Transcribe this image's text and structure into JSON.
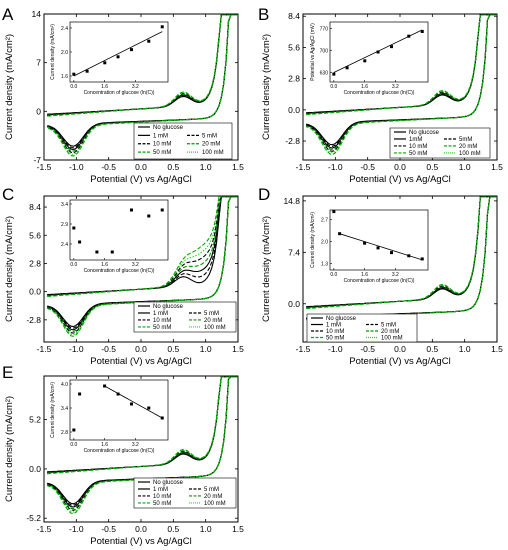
{
  "chart_data": [
    {
      "panel": "A",
      "type": "line",
      "xlabel": "Potential (V) vs Ag/AgCl",
      "ylabel": "Current density (mA/cm²)",
      "xticks": [
        "-1.5",
        "-1.0",
        "-0.5",
        "0.0",
        "0.5",
        "1.0",
        "1.5"
      ],
      "yticks": [
        "-7",
        "0",
        "7",
        "14"
      ],
      "xlim": [
        -1.5,
        1.5
      ],
      "ylim": [
        -7,
        14
      ],
      "legend": [
        {
          "name": "No glucose",
          "color": "#000000",
          "dash": "solid"
        },
        {
          "name": "5 mM",
          "color": "#000000",
          "dash": "dash"
        },
        {
          "name": "1 mM",
          "color": "#000000",
          "dash": "solid"
        },
        {
          "name": "20 mM",
          "color": "#009900",
          "dash": "dash"
        },
        {
          "name": "10 mM",
          "color": "#000000",
          "dash": "dash"
        },
        {
          "name": "100 mM",
          "color": "#33cc33",
          "dash": "dot"
        },
        {
          "name": "50 mM",
          "color": "#00aa00",
          "dash": "dash"
        }
      ],
      "inset": {
        "xlabel": "Concentration of glucose (ln(C))",
        "ylabel": "Current density (mA/cm²)",
        "xticks": [
          "0.0",
          "1.6",
          "3.2"
        ],
        "yticks": [
          "1.6",
          "2.0",
          "2.4"
        ],
        "xlim": [
          -0.2,
          4.9
        ],
        "ylim": [
          1.5,
          2.5
        ],
        "points": [
          [
            0.0,
            1.63
          ],
          [
            0.69,
            1.68
          ],
          [
            1.61,
            1.82
          ],
          [
            2.3,
            1.92
          ],
          [
            3.0,
            2.04
          ],
          [
            3.9,
            2.18
          ],
          [
            4.6,
            2.42
          ]
        ],
        "fit": [
          [
            0.0,
            1.6
          ],
          [
            4.6,
            2.34
          ]
        ]
      },
      "ticks_on_left_only": true
    },
    {
      "panel": "B",
      "type": "line",
      "xlabel": "Potential (V) vs Ag/AgCl",
      "ylabel": "Current density (mA/cm²)",
      "xticks": [
        "-1.5",
        "-1.0",
        "-0.5",
        "0.0",
        "0.5",
        "1.0",
        "1.5"
      ],
      "yticks": [
        "-2.8",
        "0.0",
        "2.8",
        "5.6",
        "8.4"
      ],
      "xlim": [
        -1.5,
        1.5
      ],
      "ylim": [
        -4.5,
        8.6
      ],
      "legend": [
        {
          "name": "No glucose",
          "color": "#000000",
          "dash": "solid"
        },
        {
          "name": "5mM",
          "color": "#000000",
          "dash": "dash"
        },
        {
          "name": "1mM",
          "color": "#000000",
          "dash": "solid"
        },
        {
          "name": "20 mM",
          "color": "#009900",
          "dash": "dash"
        },
        {
          "name": "10 mM",
          "color": "#000000",
          "dash": "dash"
        },
        {
          "name": "100 mM",
          "color": "#33cc33",
          "dash": "dot"
        },
        {
          "name": "50 mM",
          "color": "#00aa00",
          "dash": "dash"
        }
      ],
      "inset": {
        "xlabel": "Concentration of glucose (ln(C))",
        "ylabel": "Potential vs Ag/AgCl (mV)",
        "xticks": [
          "0.0",
          "1.6",
          "3.2"
        ],
        "yticks": [
          "630",
          "700",
          "770"
        ],
        "xlim": [
          -0.2,
          4.9
        ],
        "ylim": [
          600,
          790
        ],
        "points": [
          [
            0.0,
            625
          ],
          [
            0.69,
            645
          ],
          [
            1.61,
            667
          ],
          [
            2.3,
            695
          ],
          [
            3.0,
            712
          ],
          [
            3.9,
            745
          ],
          [
            4.6,
            760
          ]
        ],
        "fit": [
          [
            0.0,
            630
          ],
          [
            4.6,
            765
          ]
        ]
      }
    },
    {
      "panel": "C",
      "type": "line",
      "xlabel": "Potential (V) vs Ag/AgCl",
      "ylabel": "Current density (mA/cm²)",
      "xticks": [
        "-1.5",
        "-1.0",
        "-0.5",
        "0.0",
        "0.5",
        "1.0",
        "1.5"
      ],
      "yticks": [
        "-2.8",
        "0.0",
        "2.8",
        "5.6",
        "8.4"
      ],
      "xlim": [
        -1.5,
        1.5
      ],
      "ylim": [
        -5.0,
        9.5
      ],
      "legend": [
        {
          "name": "No glucose",
          "color": "#000000",
          "dash": "solid"
        },
        {
          "name": "5 mM",
          "color": "#000000",
          "dash": "dash"
        },
        {
          "name": "1 mM",
          "color": "#000000",
          "dash": "solid"
        },
        {
          "name": "20 mM",
          "color": "#009900",
          "dash": "dash"
        },
        {
          "name": "10 mM",
          "color": "#000000",
          "dash": "dash"
        },
        {
          "name": "100 mM",
          "color": "#33cc33",
          "dash": "dot"
        },
        {
          "name": "50 mM",
          "color": "#00aa00",
          "dash": "dash"
        }
      ],
      "inset": {
        "xlabel": "Concentration of glucose (ln(C))",
        "ylabel": "",
        "xticks": [
          "0.0",
          "1.6",
          "3.2"
        ],
        "yticks": [
          "2.4",
          "2.9",
          "3.4"
        ],
        "xlim": [
          -0.2,
          4.9
        ],
        "ylim": [
          2.0,
          3.5
        ],
        "points": [
          [
            0.0,
            2.8
          ],
          [
            0.3,
            2.45
          ],
          [
            1.2,
            2.2
          ],
          [
            2.0,
            2.2
          ],
          [
            3.0,
            3.25
          ],
          [
            3.9,
            3.1
          ],
          [
            4.6,
            3.25
          ]
        ],
        "fit": null
      }
    },
    {
      "panel": "D",
      "type": "line",
      "xlabel": "Potential (V) vs Ag/AgCl",
      "ylabel": "Current density (mA/cm²)",
      "xticks": [
        "-1.5",
        "-1.0",
        "-0.5",
        "0.0",
        "0.5",
        "1.0",
        "1.5"
      ],
      "yticks": [
        "0.0",
        "7.4",
        "14.8"
      ],
      "xlim": [
        -1.5,
        1.5
      ],
      "ylim": [
        -5.5,
        15.5
      ],
      "legend": [
        {
          "name": "No glucose",
          "color": "#000000",
          "dash": "solid"
        },
        {
          "name": "5 mM",
          "color": "#000000",
          "dash": "dash"
        },
        {
          "name": "1 mM",
          "color": "#000000",
          "dash": "solid"
        },
        {
          "name": "20 mM",
          "color": "#009900",
          "dash": "dash"
        },
        {
          "name": "10 mM",
          "color": "#000000",
          "dash": "dash"
        },
        {
          "name": "100 mM",
          "color": "#33cc33",
          "dash": "dot"
        },
        {
          "name": "50 mM",
          "color": "#00aa00",
          "dash": "dash"
        }
      ],
      "inset": {
        "xlabel": "Concentration of glucose (ln(C))",
        "ylabel": "Current density (mA/cm²)",
        "xticks": [
          "0.0",
          "1.6",
          "3.2"
        ],
        "yticks": [
          "1.3",
          "2.0",
          "2.7"
        ],
        "xlim": [
          -0.2,
          4.9
        ],
        "ylim": [
          1.1,
          3.0
        ],
        "points": [
          [
            0.0,
            2.95
          ],
          [
            0.3,
            2.25
          ],
          [
            1.6,
            1.95
          ],
          [
            2.3,
            1.8
          ],
          [
            3.0,
            1.65
          ],
          [
            3.9,
            1.55
          ],
          [
            4.6,
            1.45
          ]
        ],
        "fit": [
          [
            0.3,
            2.25
          ],
          [
            4.6,
            1.42
          ]
        ]
      }
    },
    {
      "panel": "E",
      "type": "line",
      "xlabel": "Potential (V) vs Ag/AgCl",
      "ylabel": "Current density (mA/cm²)",
      "xticks": [
        "-1.5",
        "-1.0",
        "-0.5",
        "0.0",
        "0.5",
        "1.0",
        "1.5"
      ],
      "yticks": [
        "-5.2",
        "0.0",
        "5.2"
      ],
      "xlim": [
        -1.5,
        1.5
      ],
      "ylim": [
        -5.6,
        9.8
      ],
      "legend": [
        {
          "name": "No glucose",
          "color": "#000000",
          "dash": "solid"
        },
        {
          "name": "5 mM",
          "color": "#000000",
          "dash": "dash"
        },
        {
          "name": "1 mM",
          "color": "#000000",
          "dash": "solid"
        },
        {
          "name": "20 mM",
          "color": "#009900",
          "dash": "dash"
        },
        {
          "name": "10 mM",
          "color": "#000000",
          "dash": "dash"
        },
        {
          "name": "100 mM",
          "color": "#33cc33",
          "dash": "dot"
        },
        {
          "name": "50 mM",
          "color": "#00aa00",
          "dash": "dash"
        }
      ],
      "inset": {
        "xlabel": "Concentration of glucose (ln(C))",
        "ylabel": "Current density (mA/cm²)",
        "xticks": [
          "0.0",
          "1.6",
          "3.2"
        ],
        "yticks": [
          "2.8",
          "3.4",
          "4.0"
        ],
        "xlim": [
          -0.2,
          4.9
        ],
        "ylim": [
          2.6,
          4.1
        ],
        "points": [
          [
            0.0,
            2.85
          ],
          [
            0.3,
            3.75
          ],
          [
            1.6,
            3.95
          ],
          [
            2.3,
            3.75
          ],
          [
            3.0,
            3.5
          ],
          [
            3.9,
            3.4
          ],
          [
            4.6,
            3.15
          ]
        ],
        "fit": [
          [
            1.6,
            3.95
          ],
          [
            4.6,
            3.15
          ]
        ]
      }
    }
  ]
}
